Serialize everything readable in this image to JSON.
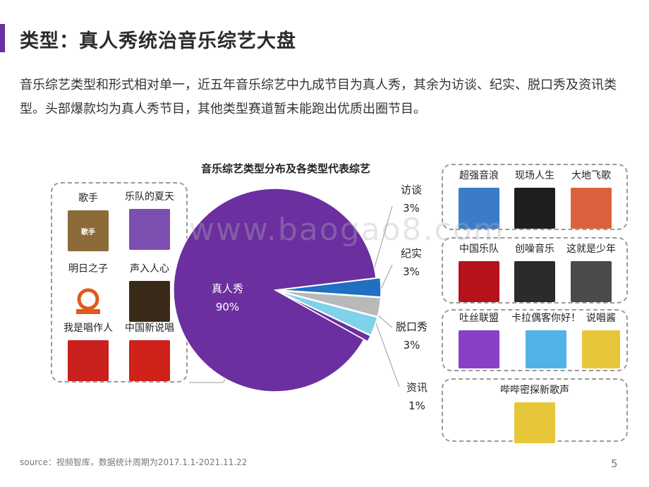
{
  "title": "类型：真人秀统治音乐综艺大盘",
  "intro": "音乐综艺类型和形式相对单一，近五年音乐综艺中九成节目为真人秀，其余为访谈、纪实、脱口秀及资讯类型。头部爆款均为真人秀节目，其他类型赛道暂未能跑出优质出圈节目。",
  "watermark": "www.baogao8.com",
  "chart_data": {
    "type": "pie",
    "title": "音乐综艺类型分布及各类型代表综艺",
    "slices": [
      {
        "label": "真人秀",
        "value": 90,
        "display": "90%",
        "color": "#6b2fa0"
      },
      {
        "label": "访谈",
        "value": 3,
        "display": "3%",
        "color": "#1f6fc2"
      },
      {
        "label": "纪实",
        "value": 3,
        "display": "3%",
        "color": "#b9b9b9"
      },
      {
        "label": "脱口秀",
        "value": 3,
        "display": "3%",
        "color": "#7fd3e8"
      },
      {
        "label": "资讯",
        "value": 1,
        "display": "1%",
        "color": "#6b2fa0"
      }
    ]
  },
  "reality_shows": [
    {
      "name": "歌手",
      "color": "#8c6a3a"
    },
    {
      "name": "乐队的夏天",
      "color": "#7c4fb0"
    },
    {
      "name": "明日之子",
      "color": "#ffffff"
    },
    {
      "name": "声入人心",
      "color": "#3a2a1a"
    },
    {
      "name": "我是唱作人",
      "color": "#c8201c"
    },
    {
      "name": "中国新说唱",
      "color": "#d0201a"
    }
  ],
  "interview_shows": [
    {
      "name": "超强音浪",
      "color": "#3b7cc9"
    },
    {
      "name": "现场人生",
      "color": "#1e1e1e"
    },
    {
      "name": "大地飞歌",
      "color": "#d9623c"
    }
  ],
  "documentary_shows": [
    {
      "name": "中国乐队",
      "color": "#b5121b"
    },
    {
      "name": "创噪音乐",
      "color": "#2b2b2b"
    },
    {
      "name": "这就是少年",
      "color": "#4a4a4a"
    }
  ],
  "talkshow_shows": [
    {
      "name": "吐丝联盟",
      "color": "#8a3fc9"
    },
    {
      "name": "卡拉偶客你好！",
      "color": "#4fb3e6"
    },
    {
      "name": "说唱酱",
      "color": "#e8c63a"
    }
  ],
  "news_shows": [
    {
      "name": "哔哔密探新歌声",
      "color": "#e8c63a"
    }
  ],
  "source": "source：视频智库，数据统计周期为2017.1.1-2021.11.22",
  "page_number": "5"
}
